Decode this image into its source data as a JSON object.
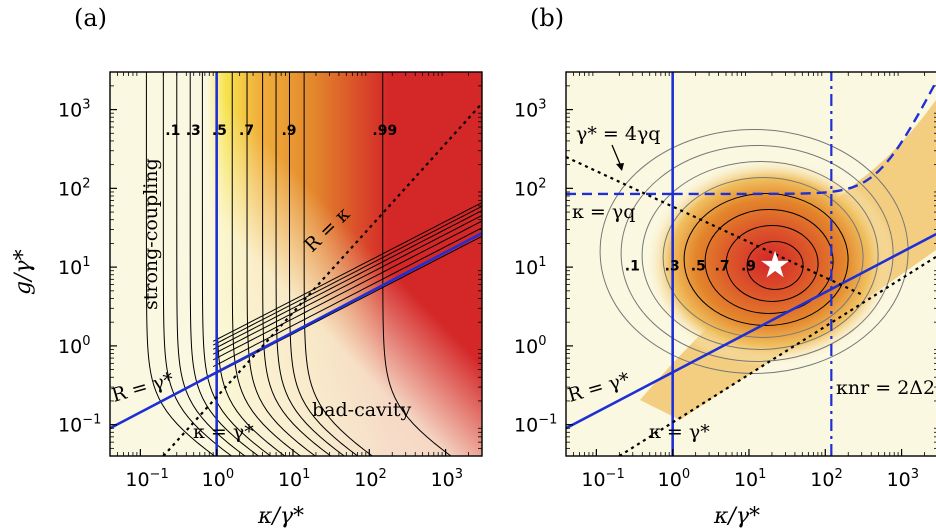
{
  "chart_data": [
    {
      "type": "heatmap",
      "panel_label": "(a)",
      "x_scale": "log",
      "y_scale": "log",
      "xlim": [
        0.04,
        3000
      ],
      "ylim": [
        0.04,
        3000
      ],
      "xlabel": "κ/γ*",
      "ylabel": "g/γ*",
      "x_ticks": [
        0.1,
        1,
        10,
        100,
        1000
      ],
      "x_tick_labels": [
        {
          "base": "10",
          "exp": "−1"
        },
        {
          "base": "10",
          "exp": "0"
        },
        {
          "base": "10",
          "exp": "1"
        },
        {
          "base": "10",
          "exp": "2"
        },
        {
          "base": "10",
          "exp": "3"
        }
      ],
      "y_ticks": [
        0.1,
        1,
        10,
        100,
        1000
      ],
      "y_tick_labels": [
        {
          "base": "10",
          "exp": "−1"
        },
        {
          "base": "10",
          "exp": "0"
        },
        {
          "base": "10",
          "exp": "1"
        },
        {
          "base": "10",
          "exp": "2"
        },
        {
          "base": "10",
          "exp": "3"
        }
      ],
      "contour_levels": [
        ".1",
        ".3",
        ".5",
        ".7",
        ".9",
        ".99"
      ],
      "contour_label_x": [
        0.27,
        0.5,
        1.1,
        2.5,
        9,
        140
      ],
      "contour_label_y": 550,
      "lines": [
        {
          "label": "R = γ*",
          "kind": "solid",
          "points": [
            [
              0.04,
              0.09
            ],
            [
              3000,
              27
            ]
          ]
        },
        {
          "label": "κ = γ*",
          "kind": "solid",
          "points": [
            [
              1,
              0.04
            ],
            [
              1,
              3000
            ]
          ]
        },
        {
          "label": "R = κ",
          "kind": "dotted",
          "points": [
            [
              0.2,
              0.04
            ],
            [
              3000,
              1200
            ]
          ]
        }
      ],
      "region_labels": [
        "strong-coupling",
        "bad-cavity"
      ],
      "annotations": {
        "r_gamma": "R = γ*",
        "kappa_gamma": "κ = γ*",
        "r_kappa": "R = κ",
        "strong": "strong-coupling",
        "bad": "bad-cavity"
      },
      "colors": {
        "pale": "#fbf8e1",
        "yellow": "#f7e34e",
        "orange": "#e3862c",
        "red": "#d42728",
        "line": "#1f2fd6"
      }
    },
    {
      "type": "heatmap",
      "panel_label": "(b)",
      "x_scale": "log",
      "y_scale": "log",
      "xlim": [
        0.04,
        3000
      ],
      "ylim": [
        0.04,
        3000
      ],
      "xlabel": "κ/γ*",
      "ylabel": "",
      "x_ticks": [
        0.1,
        1,
        10,
        100,
        1000
      ],
      "x_tick_labels": [
        {
          "base": "10",
          "exp": "−1"
        },
        {
          "base": "10",
          "exp": "0"
        },
        {
          "base": "10",
          "exp": "1"
        },
        {
          "base": "10",
          "exp": "2"
        },
        {
          "base": "10",
          "exp": "3"
        }
      ],
      "y_ticks": [
        0.1,
        1,
        10,
        100,
        1000
      ],
      "y_tick_labels": [
        {
          "base": "10",
          "exp": "−1"
        },
        {
          "base": "10",
          "exp": "0"
        },
        {
          "base": "10",
          "exp": "1"
        },
        {
          "base": "10",
          "exp": "2"
        },
        {
          "base": "10",
          "exp": "3"
        }
      ],
      "contour_levels": [
        ".1",
        ".3",
        ".5",
        ".7",
        ".9"
      ],
      "contour_label_x": [
        0.3,
        1,
        2.2,
        4.5,
        10
      ],
      "contour_label_y": 10.5,
      "optimum": [
        22,
        10.5
      ],
      "lines": [
        {
          "label": "R = γ*",
          "kind": "solid",
          "points": [
            [
              0.04,
              0.09
            ],
            [
              3000,
              27
            ]
          ]
        },
        {
          "label": "κ = γ*",
          "kind": "solid",
          "points": [
            [
              1,
              0.04
            ],
            [
              1,
              3000
            ]
          ]
        },
        {
          "label": "κ = γq",
          "kind": "dashed",
          "points": [
            [
              0.04,
              85
            ],
            [
              1,
              85
            ]
          ]
        },
        {
          "label": "κnr = 2Δ2",
          "kind": "dashdot",
          "points": [
            [
              120,
              0.04
            ],
            [
              120,
              3000
            ]
          ]
        },
        {
          "label": "γ* = 4γq",
          "kind": "dotted",
          "points": [
            [
              0.04,
              250
            ],
            [
              300,
              4.5
            ]
          ]
        },
        {
          "label": "R = κ",
          "kind": "dotted",
          "points": [
            [
              0.2,
              0.04
            ],
            [
              3000,
              14
            ]
          ]
        }
      ],
      "annotations": {
        "gamma_q": "γ* = 4γq",
        "kappa_q": "κ = γq",
        "r_gamma": "R = γ*",
        "kappa_gamma": "κ = γ*",
        "kappa_nr": "κnr = 2Δ2"
      },
      "colors": {
        "pale": "#fbf8e1",
        "yellow": "#f7e34e",
        "orange": "#e3862c",
        "red": "#d42728",
        "line": "#1f2fd6"
      }
    }
  ]
}
